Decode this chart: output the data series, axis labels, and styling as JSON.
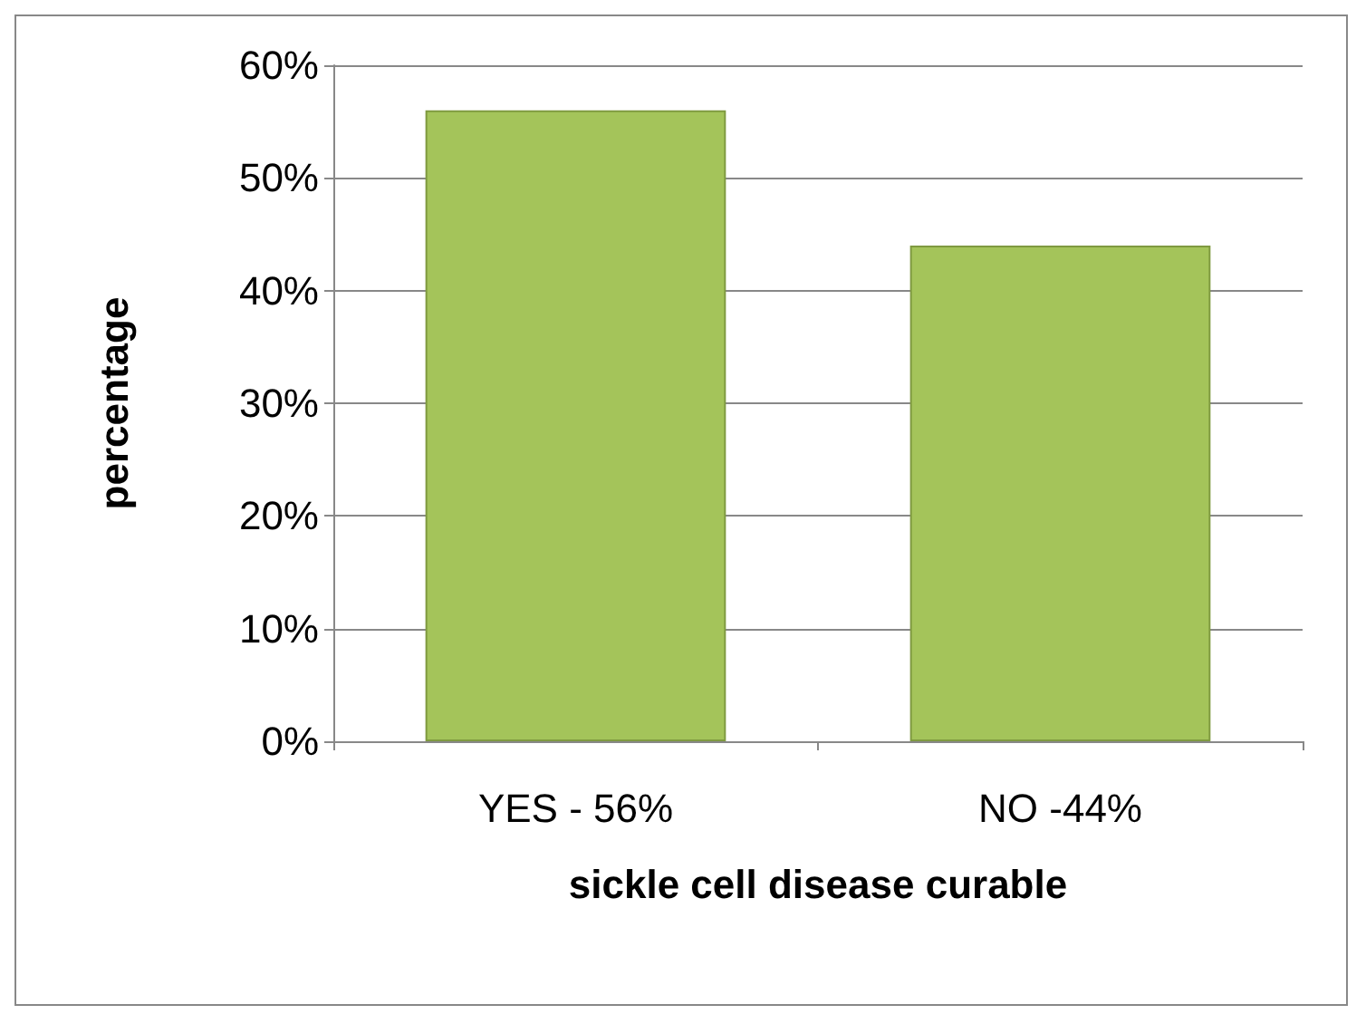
{
  "chart_data": {
    "type": "bar",
    "xlabel": "sickle cell disease curable",
    "ylabel": "percentage",
    "categories": [
      "YES - 56%",
      "NO -44%"
    ],
    "values": [
      56,
      44
    ],
    "color": "#a4c45a",
    "ylim": [
      0,
      60
    ],
    "yticks": [
      {
        "value": 0,
        "label": "0%"
      },
      {
        "value": 10,
        "label": "10%"
      },
      {
        "value": 20,
        "label": "20%"
      },
      {
        "value": 30,
        "label": "30%"
      },
      {
        "value": 40,
        "label": "40%"
      },
      {
        "value": 50,
        "label": "50%"
      },
      {
        "value": 60,
        "label": "60%"
      }
    ],
    "grid": "y"
  }
}
